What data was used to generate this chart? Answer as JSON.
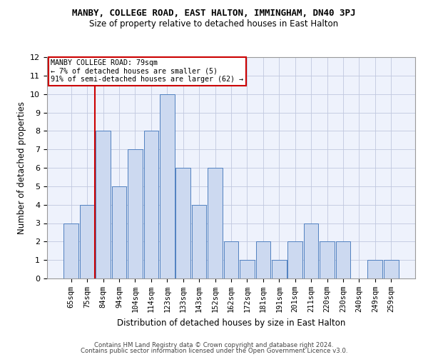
{
  "title": "MANBY, COLLEGE ROAD, EAST HALTON, IMMINGHAM, DN40 3PJ",
  "subtitle": "Size of property relative to detached houses in East Halton",
  "xlabel": "Distribution of detached houses by size in East Halton",
  "ylabel": "Number of detached properties",
  "categories": [
    "65sqm",
    "75sqm",
    "84sqm",
    "94sqm",
    "104sqm",
    "114sqm",
    "123sqm",
    "133sqm",
    "143sqm",
    "152sqm",
    "162sqm",
    "172sqm",
    "181sqm",
    "191sqm",
    "201sqm",
    "211sqm",
    "220sqm",
    "230sqm",
    "240sqm",
    "249sqm",
    "259sqm"
  ],
  "values": [
    3,
    4,
    8,
    5,
    7,
    8,
    10,
    6,
    4,
    6,
    2,
    1,
    2,
    1,
    2,
    3,
    2,
    2,
    0,
    1,
    1
  ],
  "bar_color": "#ccd9f0",
  "bar_edge_color": "#5080c0",
  "highlight_bar_index": 1,
  "highlight_line_color": "#cc0000",
  "ylim": [
    0,
    12
  ],
  "yticks": [
    0,
    1,
    2,
    3,
    4,
    5,
    6,
    7,
    8,
    9,
    10,
    11,
    12
  ],
  "annotation_title": "MANBY COLLEGE ROAD: 79sqm",
  "annotation_line1": "← 7% of detached houses are smaller (5)",
  "annotation_line2": "91% of semi-detached houses are larger (62) →",
  "annotation_box_color": "#ffffff",
  "annotation_box_edge_color": "#cc0000",
  "footer1": "Contains HM Land Registry data © Crown copyright and database right 2024.",
  "footer2": "Contains public sector information licensed under the Open Government Licence v3.0.",
  "background_color": "#eef2fc",
  "grid_color": "#c0c8df"
}
